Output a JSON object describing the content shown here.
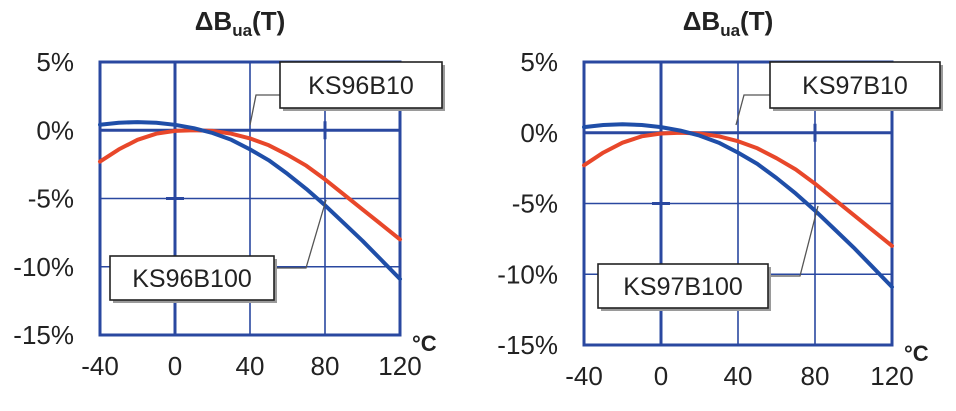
{
  "chart_data": [
    {
      "type": "line",
      "title": "ΔBua(T)",
      "title_main": "ΔB",
      "title_sub": "ua",
      "title_tail": "(T)",
      "x_unit": "°C",
      "xlim": [
        -40,
        120
      ],
      "ylim": [
        -15,
        5
      ],
      "x_ticks": [
        -40,
        0,
        40,
        80,
        120
      ],
      "y_ticks": [
        5,
        0,
        -5,
        -10,
        -15
      ],
      "x_tick_labels": [
        "-40",
        "0",
        "40",
        "80",
        "120"
      ],
      "y_tick_labels": [
        "5%",
        "0%",
        "-5%",
        "-10%",
        "-15%"
      ],
      "grid": true,
      "series": [
        {
          "name": "KS96B10",
          "color": "#e8472a",
          "x": [
            -40,
            -30,
            -20,
            -10,
            0,
            10,
            20,
            30,
            40,
            50,
            60,
            70,
            80,
            90,
            100,
            110,
            120
          ],
          "y": [
            -2.3,
            -1.4,
            -0.7,
            -0.25,
            -0.05,
            0.0,
            -0.05,
            -0.25,
            -0.6,
            -1.1,
            -1.8,
            -2.6,
            -3.6,
            -4.7,
            -5.8,
            -6.9,
            -8.0
          ]
        },
        {
          "name": "KS96B100",
          "color": "#1f4ea8",
          "x": [
            -40,
            -30,
            -20,
            -10,
            0,
            10,
            20,
            30,
            40,
            50,
            60,
            70,
            80,
            90,
            100,
            110,
            120
          ],
          "y": [
            0.4,
            0.55,
            0.6,
            0.55,
            0.4,
            0.15,
            -0.2,
            -0.7,
            -1.4,
            -2.2,
            -3.2,
            -4.3,
            -5.5,
            -6.8,
            -8.1,
            -9.5,
            -10.9
          ]
        }
      ]
    },
    {
      "type": "line",
      "title": "ΔBua(T)",
      "title_main": "ΔB",
      "title_sub": "ua",
      "title_tail": "(T)",
      "x_unit": "°C",
      "xlim": [
        -40,
        120
      ],
      "ylim": [
        -15,
        5
      ],
      "x_ticks": [
        -40,
        0,
        40,
        80,
        120
      ],
      "y_ticks": [
        5,
        0,
        -5,
        -10,
        -15
      ],
      "x_tick_labels": [
        "-40",
        "0",
        "40",
        "80",
        "120"
      ],
      "y_tick_labels": [
        "5%",
        "0%",
        "-5%",
        "-10%",
        "-15%"
      ],
      "grid": true,
      "series": [
        {
          "name": "KS97B10",
          "color": "#e8472a",
          "x": [
            -40,
            -30,
            -20,
            -10,
            0,
            10,
            20,
            30,
            40,
            50,
            60,
            70,
            80,
            90,
            100,
            110,
            120
          ],
          "y": [
            -2.3,
            -1.4,
            -0.7,
            -0.25,
            -0.05,
            0.0,
            -0.05,
            -0.25,
            -0.6,
            -1.1,
            -1.8,
            -2.6,
            -3.6,
            -4.7,
            -5.8,
            -6.9,
            -8.0
          ]
        },
        {
          "name": "KS97B100",
          "color": "#1f4ea8",
          "x": [
            -40,
            -30,
            -20,
            -10,
            0,
            10,
            20,
            30,
            40,
            50,
            60,
            70,
            80,
            90,
            100,
            110,
            120
          ],
          "y": [
            0.4,
            0.55,
            0.6,
            0.55,
            0.4,
            0.15,
            -0.2,
            -0.7,
            -1.4,
            -2.2,
            -3.2,
            -4.3,
            -5.5,
            -6.8,
            -8.1,
            -9.5,
            -10.9
          ]
        }
      ]
    }
  ]
}
